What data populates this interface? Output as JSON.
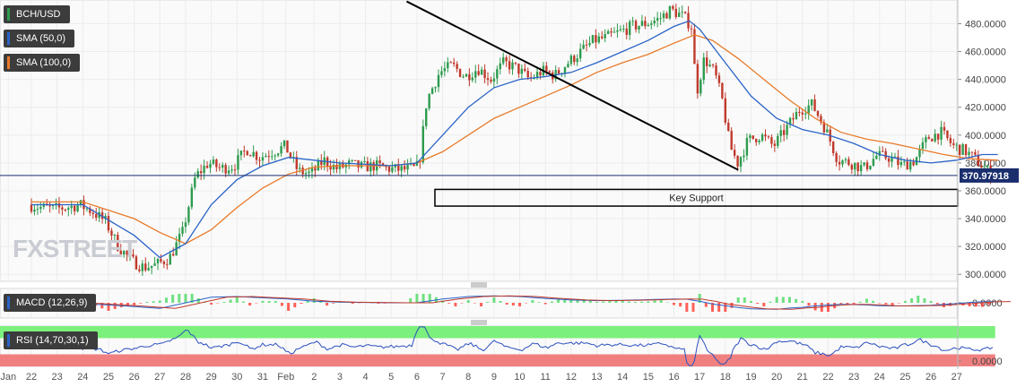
{
  "watermark": "FXSTREET",
  "tags": {
    "pair": "BCH/USD",
    "sma50": "SMA (50,0)",
    "sma100": "SMA (100,0)",
    "macd": "MACD (12,26,9)",
    "rsi": "RSI (14,70,30,1)"
  },
  "colors": {
    "up": "#2e9b4e",
    "down": "#c0392b",
    "sma50": "#2a64c8",
    "sma100": "#e87a2a",
    "trendline": "#000000",
    "rsi_over": "#7cf07c",
    "rsi_under": "#f08080",
    "tag_bg": "#3c3c3c"
  },
  "chart_data": {
    "type": "candlestick",
    "price": {
      "y_ticks": [
        "300.0000",
        "320.0000",
        "340.0000",
        "360.0000",
        "380.0000",
        "400.0000",
        "420.0000",
        "440.0000",
        "460.0000",
        "480.0000"
      ],
      "y_tick_values": [
        300,
        320,
        340,
        360,
        380,
        400,
        420,
        440,
        460,
        480
      ],
      "ylim": [
        295,
        497
      ],
      "current_price": "370.97918",
      "current_value": 370.98,
      "support_zone": {
        "label": "Key Support",
        "low": 349,
        "high": 361,
        "from_day": 15.7
      },
      "trendline": {
        "from": [
          14.6,
          496
        ],
        "to": [
          27.5,
          375
        ]
      },
      "path_key": [
        [
          0,
          350
        ],
        [
          0.5,
          348
        ],
        [
          1,
          347
        ],
        [
          1.5,
          348
        ],
        [
          2,
          350
        ],
        [
          2.5,
          345
        ],
        [
          3,
          338
        ],
        [
          3.5,
          320
        ],
        [
          4,
          310
        ],
        [
          4.5,
          305
        ],
        [
          5,
          307
        ],
        [
          5.5,
          312
        ],
        [
          6,
          330
        ],
        [
          6.5,
          370
        ],
        [
          7,
          380
        ],
        [
          7.5,
          376
        ],
        [
          8,
          378
        ],
        [
          8.5,
          390
        ],
        [
          9,
          384
        ],
        [
          9.5,
          388
        ],
        [
          10,
          392
        ],
        [
          10.5,
          374
        ],
        [
          11,
          372
        ],
        [
          11.5,
          382
        ],
        [
          12,
          376
        ],
        [
          12.5,
          379
        ],
        [
          13,
          377
        ],
        [
          13.5,
          378
        ],
        [
          14,
          376
        ],
        [
          14.5,
          375
        ],
        [
          15,
          376
        ],
        [
          15.2,
          378
        ],
        [
          15.5,
          425
        ],
        [
          16,
          445
        ],
        [
          16.5,
          450
        ],
        [
          17,
          442
        ],
        [
          17.5,
          448
        ],
        [
          18,
          440
        ],
        [
          18.5,
          452
        ],
        [
          19,
          448
        ],
        [
          19.5,
          440
        ],
        [
          20,
          446
        ],
        [
          20.5,
          443
        ],
        [
          21,
          452
        ],
        [
          21.5,
          460
        ],
        [
          22,
          468
        ],
        [
          22.5,
          470
        ],
        [
          23,
          474
        ],
        [
          23.5,
          478
        ],
        [
          24,
          480
        ],
        [
          24.5,
          483
        ],
        [
          25,
          490
        ],
        [
          25.5,
          485
        ],
        [
          25.8,
          478
        ],
        [
          26,
          430
        ],
        [
          26.3,
          455
        ],
        [
          26.7,
          445
        ],
        [
          27,
          425
        ],
        [
          27.3,
          392
        ],
        [
          27.6,
          380
        ],
        [
          28,
          396
        ],
        [
          28.5,
          400
        ],
        [
          29,
          392
        ],
        [
          29.5,
          405
        ],
        [
          30,
          418
        ],
        [
          30.5,
          422
        ],
        [
          31,
          405
        ],
        [
          31.5,
          382
        ],
        [
          32,
          380
        ],
        [
          32.5,
          376
        ],
        [
          33,
          385
        ],
        [
          33.5,
          384
        ],
        [
          34,
          378
        ],
        [
          34.5,
          382
        ],
        [
          35,
          398
        ],
        [
          35.5,
          402
        ],
        [
          36,
          392
        ],
        [
          36.5,
          388
        ],
        [
          37,
          380
        ],
        [
          37.5,
          371
        ]
      ]
    },
    "sma50_key": [
      [
        0,
        350
      ],
      [
        2,
        350
      ],
      [
        4,
        328
      ],
      [
        5,
        312
      ],
      [
        6,
        322
      ],
      [
        7,
        350
      ],
      [
        8,
        368
      ],
      [
        9,
        378
      ],
      [
        10,
        384
      ],
      [
        11,
        382
      ],
      [
        12,
        380
      ],
      [
        13,
        379
      ],
      [
        14,
        378
      ],
      [
        15,
        380
      ],
      [
        16,
        400
      ],
      [
        17,
        420
      ],
      [
        18,
        434
      ],
      [
        19,
        440
      ],
      [
        20,
        442
      ],
      [
        21,
        445
      ],
      [
        22,
        452
      ],
      [
        23,
        460
      ],
      [
        24,
        468
      ],
      [
        25,
        478
      ],
      [
        25.6,
        482
      ],
      [
        26,
        476
      ],
      [
        27,
        452
      ],
      [
        28,
        428
      ],
      [
        29,
        412
      ],
      [
        30,
        404
      ],
      [
        31,
        400
      ],
      [
        32,
        394
      ],
      [
        33,
        386
      ],
      [
        34,
        382
      ],
      [
        35,
        380
      ],
      [
        36,
        382
      ],
      [
        37,
        386
      ],
      [
        37.6,
        386
      ]
    ],
    "sma100_key": [
      [
        0,
        352
      ],
      [
        2,
        352
      ],
      [
        4,
        340
      ],
      [
        5,
        330
      ],
      [
        6,
        322
      ],
      [
        7,
        332
      ],
      [
        8,
        348
      ],
      [
        9,
        362
      ],
      [
        10,
        372
      ],
      [
        11,
        377
      ],
      [
        12,
        378
      ],
      [
        13,
        378
      ],
      [
        14,
        378
      ],
      [
        15,
        380
      ],
      [
        16,
        388
      ],
      [
        17,
        400
      ],
      [
        18,
        412
      ],
      [
        19,
        420
      ],
      [
        20,
        428
      ],
      [
        21,
        436
      ],
      [
        22,
        445
      ],
      [
        23,
        452
      ],
      [
        24,
        458
      ],
      [
        25,
        466
      ],
      [
        25.8,
        472
      ],
      [
        26.5,
        468
      ],
      [
        27.5,
        455
      ],
      [
        28.5,
        440
      ],
      [
        29.5,
        425
      ],
      [
        30.5,
        412
      ],
      [
        31.5,
        402
      ],
      [
        32.5,
        397
      ],
      [
        33.5,
        394
      ],
      [
        34.5,
        390
      ],
      [
        35.5,
        386
      ],
      [
        36.5,
        383
      ],
      [
        37.6,
        382
      ]
    ],
    "macd": {
      "y_ticks": [
        "0.0000"
      ],
      "zero": 0
    },
    "rsi": {
      "y_ticks": [
        "0.0000"
      ],
      "overbought": 70,
      "oversold": 30
    },
    "x_ticks": [
      {
        "label": "Jan",
        "day": -0.9
      },
      {
        "label": "22",
        "day": 0
      },
      {
        "label": "23",
        "day": 1
      },
      {
        "label": "24",
        "day": 2
      },
      {
        "label": "25",
        "day": 3
      },
      {
        "label": "26",
        "day": 4
      },
      {
        "label": "27",
        "day": 5
      },
      {
        "label": "28",
        "day": 6
      },
      {
        "label": "29",
        "day": 7
      },
      {
        "label": "30",
        "day": 8
      },
      {
        "label": "31",
        "day": 9
      },
      {
        "label": "Feb",
        "day": 9.9
      },
      {
        "label": "2",
        "day": 11
      },
      {
        "label": "3",
        "day": 12
      },
      {
        "label": "4",
        "day": 13
      },
      {
        "label": "5",
        "day": 14
      },
      {
        "label": "6",
        "day": 15
      },
      {
        "label": "7",
        "day": 16
      },
      {
        "label": "8",
        "day": 17
      },
      {
        "label": "9",
        "day": 18
      },
      {
        "label": "10",
        "day": 19
      },
      {
        "label": "11",
        "day": 20
      },
      {
        "label": "12",
        "day": 21
      },
      {
        "label": "13",
        "day": 22
      },
      {
        "label": "14",
        "day": 23
      },
      {
        "label": "15",
        "day": 24
      },
      {
        "label": "16",
        "day": 25
      },
      {
        "label": "17",
        "day": 26
      },
      {
        "label": "18",
        "day": 27
      },
      {
        "label": "19",
        "day": 28
      },
      {
        "label": "20",
        "day": 29
      },
      {
        "label": "21",
        "day": 30
      },
      {
        "label": "22",
        "day": 31
      },
      {
        "label": "23",
        "day": 32
      },
      {
        "label": "24",
        "day": 33
      },
      {
        "label": "25",
        "day": 34
      },
      {
        "label": "26",
        "day": 35
      },
      {
        "label": "27",
        "day": 36
      }
    ]
  }
}
